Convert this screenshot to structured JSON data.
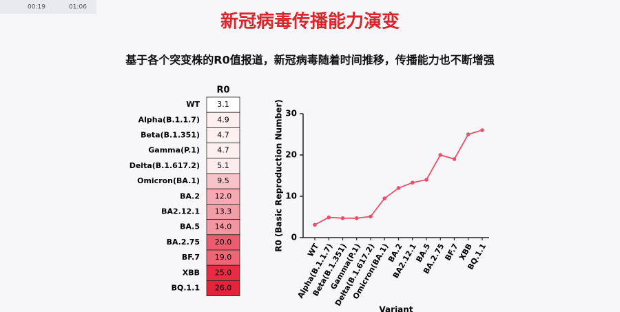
{
  "player": {
    "time": "00:19",
    "duration": "01:06"
  },
  "header": {
    "title": "新冠病毒传播能力演变",
    "subtitle": "基于各个突变株的R0值报道，新冠病毒随着时间推移，传播能力也不断增强"
  },
  "chart_data": [
    {
      "type": "heatmap",
      "title": "R0",
      "categories": [
        "WT",
        "Alpha(B.1.1.7)",
        "Beta(B.1.351)",
        "Gamma(P.1)",
        "Delta(B.1.617.2)",
        "Omicron(BA.1)",
        "BA.2",
        "BA2.12.1",
        "BA.5",
        "BA.2.75",
        "BF.7",
        "XBB",
        "BQ.1.1"
      ],
      "values": [
        3.1,
        4.9,
        4.7,
        4.7,
        5.1,
        9.5,
        12,
        13.3,
        14,
        20,
        19,
        25,
        26
      ],
      "value_labels": [
        "3.1",
        "4.9",
        "4.7",
        "4.7",
        "5.1",
        "9.5",
        "12.0",
        "13.3",
        "14.0",
        "20.0",
        "19.0",
        "25.0",
        "26.0"
      ],
      "color_range": [
        "#ffffff",
        "#e4233a"
      ]
    },
    {
      "type": "line",
      "ylabel": "R0 (Basic Reproduction Number)",
      "xlabel": "Variant",
      "categories": [
        "WT",
        "Alpha(B.1.1.7)",
        "Beta(B.1.351)",
        "Gamma(P.1)",
        "Delta(B.1.617.2)",
        "Omicron(BA.1)",
        "BA.2",
        "BA2.12.1",
        "BA.5",
        "BA.2.75",
        "BF.7",
        "XBB",
        "BQ.1.1"
      ],
      "values": [
        3.1,
        4.9,
        4.7,
        4.7,
        5.1,
        9.5,
        12,
        13.3,
        14,
        20,
        19,
        25,
        26
      ],
      "color": "#e8506a",
      "ylim": [
        0,
        30
      ],
      "yticks": [
        0,
        10,
        20,
        30
      ]
    }
  ]
}
